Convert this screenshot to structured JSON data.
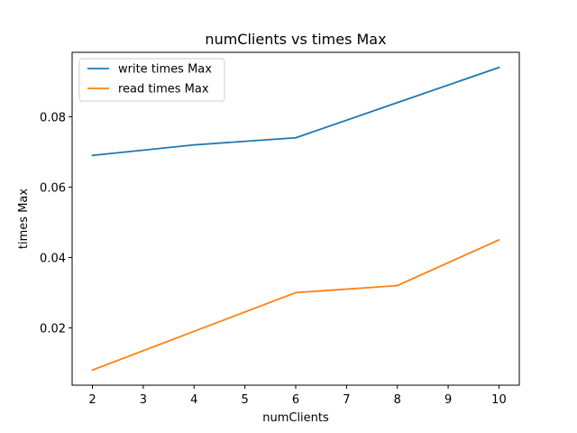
{
  "chart_data": {
    "type": "line",
    "title": "numClients vs times Max",
    "xlabel": "numClients",
    "ylabel": "times Max",
    "x": [
      2,
      4,
      6,
      8,
      10
    ],
    "xlim": [
      1.6,
      10.4
    ],
    "ylim": [
      0.0037,
      0.0983
    ],
    "xticks": [
      2,
      3,
      4,
      5,
      6,
      7,
      8,
      9,
      10
    ],
    "yticks": [
      0.02,
      0.04,
      0.06,
      0.08
    ],
    "ytick_labels": [
      "0.02",
      "0.04",
      "0.06",
      "0.08"
    ],
    "grid": false,
    "legend_position": "upper-left",
    "series": [
      {
        "name": "write times Max",
        "color": "#1f77b4",
        "values": [
          0.069,
          0.072,
          0.074,
          0.084,
          0.094
        ]
      },
      {
        "name": "read times Max",
        "color": "#ff7f0e",
        "values": [
          0.008,
          0.019,
          0.03,
          0.032,
          0.045
        ]
      }
    ]
  }
}
